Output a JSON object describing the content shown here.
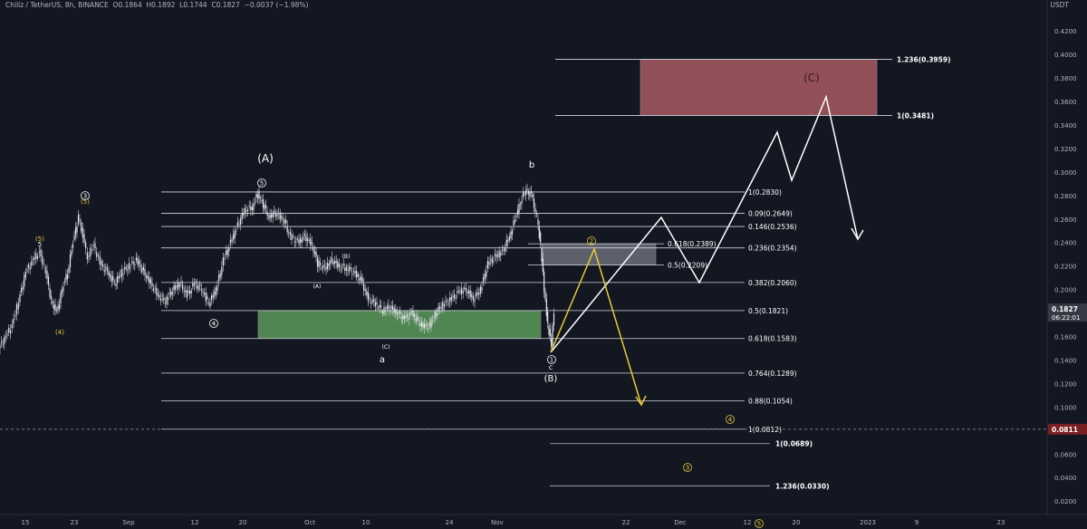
{
  "header": {
    "symbol": "Chiliz / TetherUS, 8h, BINANCE",
    "ohlc": "O0.1864  H0.1892  L0.1744  C0.1827  −0.0037 (−1.98%)",
    "currency": "USDT"
  },
  "chart_data": {
    "type": "candlestick",
    "y_range": [
      0.0,
      0.43
    ],
    "y_ticks": [
      "0.4200",
      "0.4000",
      "0.3800",
      "0.3600",
      "0.3400",
      "0.3200",
      "0.3000",
      "0.2800",
      "0.2600",
      "0.2400",
      "0.2200",
      "0.2000",
      "0.1800",
      "0.1600",
      "0.1400",
      "0.1200",
      "0.1000",
      "0.0800",
      "0.0600",
      "0.0400",
      "0.0200"
    ],
    "x_ticks": [
      "15",
      "23",
      "Sep",
      "12",
      "20",
      "Oct",
      "10",
      "24",
      "Nov",
      "22",
      "Dec",
      "12",
      "20",
      "2023",
      "9",
      "23"
    ],
    "last_price": {
      "value": "0.1827",
      "countdown": "06:22:01"
    },
    "marker_price": {
      "value": "0.0811"
    },
    "price_path": [
      [
        0,
        0.15
      ],
      [
        8,
        0.16
      ],
      [
        15,
        0.17
      ],
      [
        22,
        0.19
      ],
      [
        30,
        0.215
      ],
      [
        38,
        0.225
      ],
      [
        45,
        0.232
      ],
      [
        52,
        0.215
      ],
      [
        58,
        0.19
      ],
      [
        64,
        0.18
      ],
      [
        70,
        0.2
      ],
      [
        76,
        0.215
      ],
      [
        82,
        0.24
      ],
      [
        88,
        0.262
      ],
      [
        93,
        0.245
      ],
      [
        98,
        0.228
      ],
      [
        105,
        0.238
      ],
      [
        112,
        0.222
      ],
      [
        120,
        0.215
      ],
      [
        128,
        0.205
      ],
      [
        136,
        0.215
      ],
      [
        144,
        0.22
      ],
      [
        152,
        0.225
      ],
      [
        160,
        0.215
      ],
      [
        168,
        0.205
      ],
      [
        176,
        0.195
      ],
      [
        184,
        0.19
      ],
      [
        192,
        0.2
      ],
      [
        200,
        0.205
      ],
      [
        208,
        0.195
      ],
      [
        216,
        0.205
      ],
      [
        224,
        0.2
      ],
      [
        232,
        0.188
      ],
      [
        240,
        0.2
      ],
      [
        248,
        0.225
      ],
      [
        256,
        0.24
      ],
      [
        264,
        0.255
      ],
      [
        272,
        0.268
      ],
      [
        280,
        0.27
      ],
      [
        286,
        0.282
      ],
      [
        292,
        0.272
      ],
      [
        298,
        0.262
      ],
      [
        306,
        0.265
      ],
      [
        314,
        0.26
      ],
      [
        322,
        0.245
      ],
      [
        330,
        0.24
      ],
      [
        338,
        0.245
      ],
      [
        346,
        0.238
      ],
      [
        352,
        0.222
      ],
      [
        360,
        0.218
      ],
      [
        368,
        0.225
      ],
      [
        376,
        0.22
      ],
      [
        384,
        0.218
      ],
      [
        392,
        0.215
      ],
      [
        400,
        0.208
      ],
      [
        408,
        0.192
      ],
      [
        416,
        0.188
      ],
      [
        424,
        0.182
      ],
      [
        432,
        0.185
      ],
      [
        440,
        0.18
      ],
      [
        448,
        0.175
      ],
      [
        456,
        0.18
      ],
      [
        464,
        0.172
      ],
      [
        470,
        0.168
      ],
      [
        476,
        0.17
      ],
      [
        484,
        0.182
      ],
      [
        492,
        0.188
      ],
      [
        500,
        0.192
      ],
      [
        508,
        0.198
      ],
      [
        516,
        0.2
      ],
      [
        524,
        0.192
      ],
      [
        532,
        0.2
      ],
      [
        540,
        0.222
      ],
      [
        548,
        0.228
      ],
      [
        556,
        0.232
      ],
      [
        564,
        0.245
      ],
      [
        570,
        0.26
      ],
      [
        576,
        0.275
      ],
      [
        582,
        0.285
      ],
      [
        588,
        0.28
      ],
      [
        594,
        0.262
      ],
      [
        598,
        0.238
      ],
      [
        602,
        0.2
      ],
      [
        606,
        0.17
      ],
      [
        610,
        0.152
      ],
      [
        613,
        0.182
      ]
    ],
    "fib_levels_left": [
      {
        "label": "1(0.2830)",
        "value": 0.283
      },
      {
        "label": "0.09(0.2649)",
        "value": 0.2649
      },
      {
        "label": "0.146(0.2536)",
        "value": 0.2536
      },
      {
        "label": "0.236(0.2354)",
        "value": 0.2354
      },
      {
        "label": "0.382(0.2060)",
        "value": 0.206
      },
      {
        "label": "0.5(0.1821)",
        "value": 0.1821
      },
      {
        "label": "0.618(0.1583)",
        "value": 0.1583
      },
      {
        "label": "0.764(0.1289)",
        "value": 0.1289
      },
      {
        "label": "0.88(0.1054)",
        "value": 0.1054
      },
      {
        "label": "1(0.0812)",
        "value": 0.0812
      }
    ],
    "fib_levels_retrace": [
      {
        "label": "0.618(0.2389)",
        "value": 0.2389
      },
      {
        "label": "0.5(0.2209)",
        "value": 0.2209
      }
    ],
    "fib_levels_right": [
      {
        "label": "1.236(0.3959)",
        "value": 0.3959
      },
      {
        "label": "1(0.3481)",
        "value": 0.3481
      }
    ],
    "fib_levels_lower": [
      {
        "label": "1(0.0689)",
        "value": 0.0689
      },
      {
        "label": "1.236(0.0330)",
        "value": 0.033
      }
    ],
    "zones": [
      {
        "name": "green-support-zone",
        "color": "#5a9a5a",
        "low": 0.1583,
        "high": 0.1821
      },
      {
        "name": "grey-resistance-zone",
        "color": "#6a6d78",
        "low": 0.2209,
        "high": 0.2389
      },
      {
        "name": "red-target-zone",
        "color": "#a85a62",
        "low": 0.3481,
        "high": 0.3959
      }
    ],
    "wave_labels": {
      "white": [
        "(A)",
        "b",
        "(B)",
        "(C)",
        "a",
        "c",
        "(A)",
        "(B)",
        "(C)",
        "5"
      ],
      "yellow": [
        "(5)",
        "(5)",
        "(4)"
      ],
      "circled_white": [
        "3",
        "5",
        "4",
        "1"
      ],
      "circled_yellow": [
        "2",
        "4",
        "3",
        "5"
      ]
    }
  }
}
